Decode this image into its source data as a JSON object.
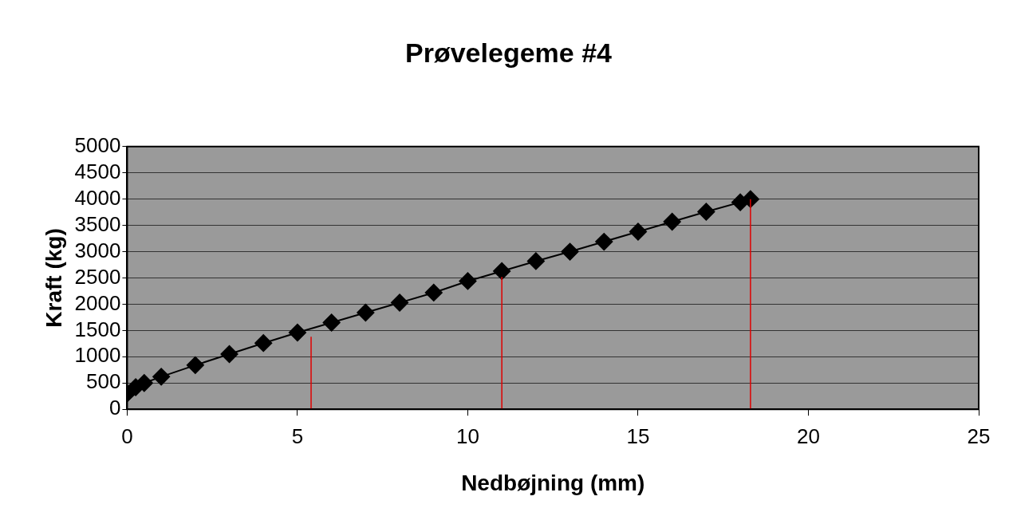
{
  "chart_data": {
    "type": "line",
    "title": "Prøvelegeme #4",
    "xlabel": "Nedbøjning (mm)",
    "ylabel": "Kraft (kg)",
    "xlim": [
      0,
      25
    ],
    "xticks": [
      0,
      5,
      10,
      15,
      20,
      25
    ],
    "ylim": [
      0,
      5000
    ],
    "yticks": [
      0,
      500,
      1000,
      1500,
      2000,
      2500,
      3000,
      3500,
      4000,
      4500,
      5000
    ],
    "grid": "y",
    "marker": "diamond",
    "series": [
      {
        "color": "#000000",
        "x": [
          0,
          0.25,
          0.5,
          1,
          2,
          3,
          4,
          5,
          6,
          7,
          8,
          9,
          10,
          11,
          12,
          13,
          14,
          15,
          16,
          17,
          18,
          18.3
        ],
        "values": [
          300,
          420,
          500,
          620,
          840,
          1050,
          1260,
          1460,
          1650,
          1840,
          2030,
          2220,
          2440,
          2630,
          2820,
          3000,
          3190,
          3380,
          3570,
          3760,
          3940,
          4000
        ]
      },
      {
        "type": "line",
        "color": "#e00000",
        "marker": "none",
        "x": [
          5.4,
          5.4
        ],
        "values": [
          0,
          1380
        ]
      },
      {
        "type": "line",
        "color": "#e00000",
        "marker": "none",
        "x": [
          11,
          11
        ],
        "values": [
          0,
          2520
        ]
      },
      {
        "type": "line",
        "color": "#e00000",
        "marker": "none",
        "x": [
          18.3,
          18.3
        ],
        "values": [
          0,
          4000
        ]
      }
    ]
  }
}
